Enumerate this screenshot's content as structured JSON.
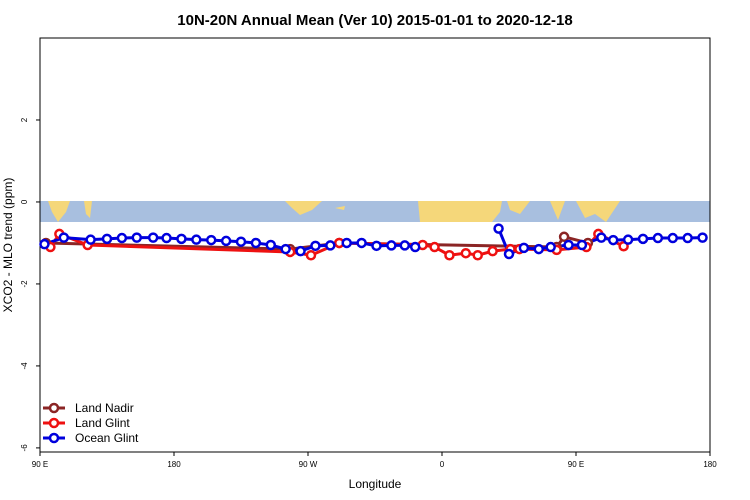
{
  "chart_data": {
    "type": "line",
    "title": "10N-20N Annual Mean (Ver 10)   2015-01-01 to 2020-12-18",
    "x_label": "Longitude",
    "y_label": "XCO2 - MLO trend (ppm)",
    "xlim": [
      90,
      540
    ],
    "ylim": [
      -6.1,
      4
    ],
    "xticks": [
      {
        "value": 90,
        "label": "90 E"
      },
      180,
      {
        "value": 270,
        "label": "90 W"
      },
      {
        "value": 360,
        "label": "0"
      },
      {
        "value": 450,
        "label": "90 E"
      },
      {
        "value": 540,
        "label": "180"
      }
    ],
    "yticks": [
      -6,
      -4,
      -2,
      0,
      2
    ],
    "legend": "bottom-left",
    "series": [
      {
        "name": "Land Nadir",
        "color": "#8b2525",
        "x": [
          94,
          258,
          291,
          437,
          442,
          458
        ],
        "values": [
          -1.0,
          -1.15,
          -1.0,
          -1.1,
          -0.85,
          -1.0
        ]
      },
      {
        "name": "Land Glint",
        "color": "#ee1111",
        "x": [
          97,
          103,
          122,
          258,
          272,
          291,
          347,
          355,
          365,
          376,
          384,
          394,
          406,
          412,
          437,
          457,
          465,
          482
        ],
        "values": [
          -1.1,
          -0.78,
          -1.05,
          -1.22,
          -1.3,
          -1.0,
          -1.05,
          -1.1,
          -1.3,
          -1.25,
          -1.3,
          -1.2,
          -1.15,
          -1.15,
          -1.17,
          -1.1,
          -0.78,
          -1.08
        ]
      },
      {
        "name": "Ocean Glint",
        "color": "#0000dd",
        "x": [
          93,
          106,
          124,
          135,
          145,
          155,
          166,
          175,
          185,
          195,
          205,
          215,
          225,
          235,
          245,
          255,
          265,
          275,
          285,
          296,
          306,
          316,
          326,
          335,
          342,
          370,
          398,
          405,
          415,
          425,
          433,
          445,
          454,
          467,
          475,
          485,
          495,
          505,
          515,
          525,
          535
        ],
        "values": [
          -1.03,
          -0.87,
          -0.92,
          -0.9,
          -0.88,
          -0.87,
          -0.87,
          -0.88,
          -0.9,
          -0.92,
          -0.93,
          -0.95,
          -0.97,
          -1.0,
          -1.05,
          -1.15,
          -1.2,
          -1.07,
          -1.06,
          -1.0,
          -1.0,
          -1.07,
          -1.06,
          -1.06,
          -1.1,
          null,
          -0.65,
          -1.27,
          -1.12,
          -1.15,
          -1.1,
          -1.05,
          -1.05,
          -0.87,
          -0.93,
          -0.92,
          -0.9,
          -0.88,
          -0.88,
          -0.88,
          -0.87
        ]
      }
    ]
  }
}
